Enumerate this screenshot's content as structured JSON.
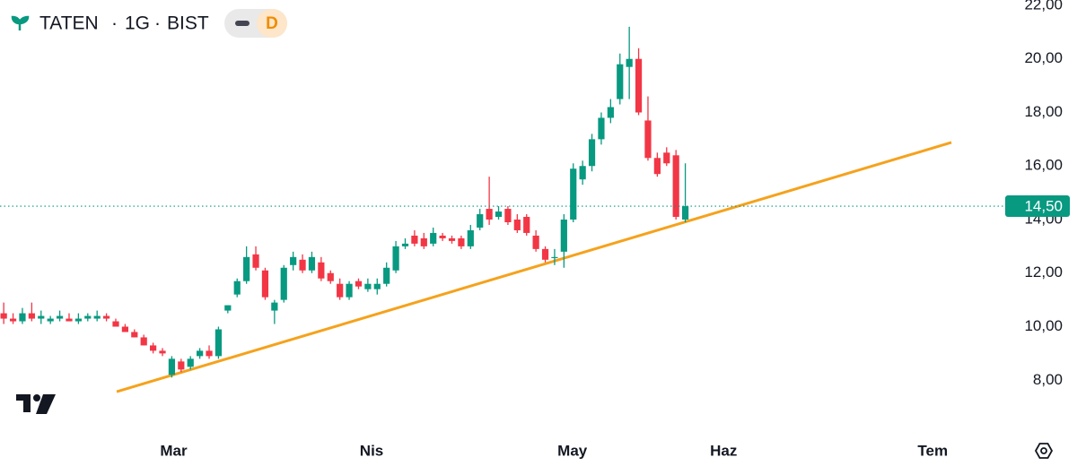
{
  "chart_data": {
    "type": "candlestick",
    "symbol": "TATEN",
    "interval": "1G",
    "exchange": "BIST",
    "separator": "·",
    "badge": "D",
    "up_color": "#089981",
    "down_color": "#f23645",
    "ylim": [
      5.8,
      22.2
    ],
    "yticks": [
      {
        "value": 8,
        "label": "8,00"
      },
      {
        "value": 10,
        "label": "10,00"
      },
      {
        "value": 12,
        "label": "12,00"
      },
      {
        "value": 14,
        "label": "14,00"
      },
      {
        "value": 16,
        "label": "16,00"
      },
      {
        "value": 18,
        "label": "18,00"
      },
      {
        "value": 20,
        "label": "20,00"
      },
      {
        "value": 22,
        "label": "22,00"
      }
    ],
    "xlim": [
      -0.4,
      106.3
    ],
    "xticks": [
      {
        "value": 18.2,
        "label": "Mar"
      },
      {
        "value": 39.4,
        "label": "Nis"
      },
      {
        "value": 60.9,
        "label": "May"
      },
      {
        "value": 77.1,
        "label": "Haz"
      },
      {
        "value": 99.5,
        "label": "Tem"
      }
    ],
    "open": [
      10.5,
      10.3,
      10.2,
      10.5,
      10.3,
      10.2,
      10.3,
      10.3,
      10.2,
      10.3,
      10.3,
      10.4,
      10.2,
      10.0,
      9.8,
      9.6,
      9.3,
      9.1,
      8.2,
      8.7,
      8.5,
      8.9,
      9.1,
      8.9,
      10.6,
      11.2,
      11.7,
      12.7,
      12.1,
      10.6,
      11.0,
      12.3,
      12.5,
      12.1,
      12.4,
      12.0,
      11.6,
      11.1,
      11.7,
      11.4,
      11.4,
      11.6,
      12.1,
      13.0,
      13.4,
      13.3,
      13.1,
      13.4,
      13.3,
      13.3,
      13.0,
      13.7,
      14.4,
      14.1,
      14.4,
      14.0,
      14.1,
      13.4,
      12.9,
      12.6,
      12.8,
      14.0,
      15.5,
      16.0,
      17.0,
      17.8,
      18.5,
      19.7,
      20.0,
      17.7,
      16.3,
      16.5,
      16.4,
      14.0
    ],
    "high": [
      10.9,
      10.5,
      10.7,
      10.9,
      10.6,
      10.4,
      10.6,
      10.5,
      10.5,
      10.5,
      10.6,
      10.5,
      10.3,
      10.1,
      9.9,
      9.7,
      9.4,
      9.2,
      8.9,
      8.8,
      8.9,
      9.2,
      9.3,
      10.0,
      10.8,
      11.8,
      13.0,
      13.0,
      12.2,
      11.0,
      12.3,
      12.8,
      12.7,
      12.8,
      12.6,
      12.1,
      11.8,
      11.7,
      11.8,
      11.8,
      11.8,
      12.4,
      13.2,
      13.3,
      13.6,
      13.5,
      13.7,
      13.5,
      13.4,
      13.4,
      13.8,
      14.4,
      15.6,
      14.5,
      14.5,
      14.2,
      14.2,
      13.6,
      13.0,
      12.9,
      14.2,
      16.1,
      16.2,
      17.2,
      18.0,
      18.5,
      20.2,
      21.2,
      20.4,
      18.6,
      16.5,
      16.7,
      16.6,
      16.1
    ],
    "low": [
      10.1,
      10.1,
      10.1,
      10.2,
      10.1,
      10.1,
      10.2,
      10.2,
      10.1,
      10.2,
      10.2,
      10.2,
      10.0,
      9.8,
      9.6,
      9.3,
      9.0,
      8.9,
      8.1,
      8.3,
      8.4,
      8.8,
      8.8,
      8.8,
      10.5,
      11.1,
      11.6,
      12.1,
      11.0,
      10.1,
      10.9,
      12.1,
      12.0,
      12.0,
      11.7,
      11.6,
      11.0,
      11.0,
      11.4,
      11.3,
      11.2,
      11.5,
      12.0,
      12.9,
      13.0,
      12.9,
      13.0,
      13.2,
      13.1,
      12.9,
      12.9,
      13.6,
      13.8,
      14.0,
      13.8,
      13.5,
      13.4,
      12.8,
      12.4,
      12.3,
      12.2,
      13.9,
      15.3,
      15.8,
      16.8,
      17.6,
      18.3,
      18.5,
      17.9,
      16.2,
      15.6,
      16.0,
      14.0,
      13.9
    ],
    "close": [
      10.3,
      10.2,
      10.5,
      10.3,
      10.4,
      10.3,
      10.4,
      10.2,
      10.3,
      10.4,
      10.4,
      10.3,
      10.0,
      9.8,
      9.6,
      9.3,
      9.1,
      9.0,
      8.8,
      8.4,
      8.8,
      9.1,
      8.9,
      9.9,
      10.8,
      11.7,
      12.6,
      12.2,
      11.1,
      10.9,
      12.2,
      12.6,
      12.1,
      12.6,
      11.8,
      11.7,
      11.1,
      11.6,
      11.5,
      11.6,
      11.6,
      12.2,
      13.0,
      13.1,
      13.1,
      13.0,
      13.5,
      13.3,
      13.2,
      13.0,
      13.6,
      14.2,
      14.0,
      14.3,
      13.9,
      13.6,
      13.5,
      12.9,
      12.5,
      12.6,
      14.0,
      15.9,
      16.0,
      17.0,
      17.8,
      18.2,
      19.8,
      20.0,
      18.0,
      16.3,
      15.7,
      16.1,
      14.1,
      14.5
    ],
    "last_price": {
      "value": 14.5,
      "label": "14,50",
      "color": "#089981"
    },
    "trendline": {
      "x": [
        12.1,
        101.5
      ],
      "values": [
        7.57,
        16.88
      ],
      "color": "#f5a21c"
    }
  }
}
